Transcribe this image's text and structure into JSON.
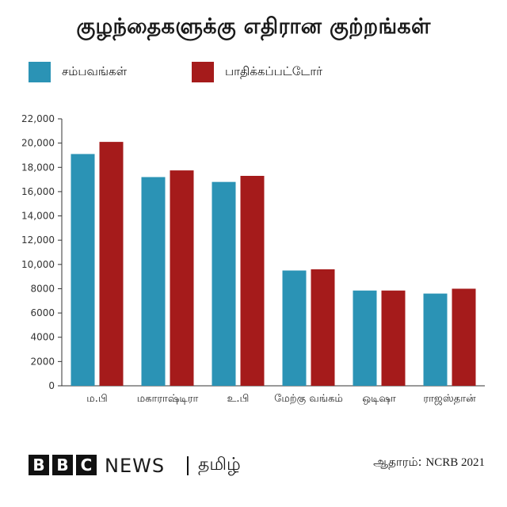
{
  "title": "குழந்தைகளுக்கு எதிரான குற்றங்கள்",
  "legend": [
    {
      "label": "சம்பவங்கள்",
      "color": "#2b93b5"
    },
    {
      "label": "பாதிக்கப்பட்டோர்",
      "color": "#a51b1b"
    }
  ],
  "chart_data": {
    "type": "bar",
    "categories": [
      "ம.பி",
      "மகாராஷ்டிரா",
      "உ.பி",
      "மேற்கு வங்கம்",
      "ஒடிஷா",
      "ராஜஸ்தான்"
    ],
    "series": [
      {
        "name": "சம்பவங்கள்",
        "color": "#2b93b5",
        "values": [
          19100,
          17200,
          16800,
          9500,
          7850,
          7600
        ]
      },
      {
        "name": "பாதிக்கப்பட்டோர்",
        "color": "#a51b1b",
        "values": [
          20100,
          17750,
          17300,
          9600,
          7850,
          8000
        ]
      }
    ],
    "ylim": [
      0,
      22000
    ],
    "yticks": [
      "0",
      "2000",
      "4000",
      "6000",
      "8000",
      "10,000",
      "12,000",
      "14,000",
      "16,000",
      "18,000",
      "20,000",
      "22,000"
    ],
    "grid": false,
    "xlabel": "",
    "ylabel": ""
  },
  "footer": {
    "brand_letters": [
      "B",
      "B",
      "C"
    ],
    "brand_news": "NEWS",
    "service": "தமிழ்",
    "source_label": "ஆதாரம்:",
    "source_value": "NCRB 2021"
  }
}
